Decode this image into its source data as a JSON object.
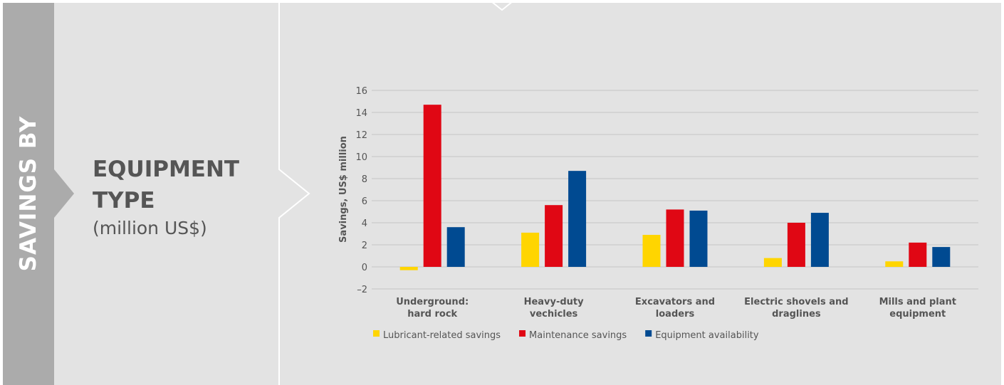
{
  "sidebar": {
    "title": "SAVINGS BY"
  },
  "heading": {
    "line1": "EQUIPMENT",
    "line2": "TYPE",
    "unit": "(million US$)"
  },
  "colors": {
    "panel_bg": "#e3e3e3",
    "side_strip": "#ababab",
    "text": "#555555",
    "grid": "#c4c4c4"
  },
  "chart_data": {
    "type": "bar",
    "categories": [
      [
        "Underground:",
        "hard rock"
      ],
      [
        "Heavy-duty",
        "vechicles"
      ],
      [
        "Excavators and",
        "loaders"
      ],
      [
        "Electric shovels and",
        "draglines"
      ],
      [
        "Mills and plant",
        "equipment"
      ]
    ],
    "series": [
      {
        "name": "Lubricant-related savings",
        "color": "#ffd500",
        "values": [
          -0.3,
          3.1,
          2.9,
          0.8,
          0.5
        ]
      },
      {
        "name": "Maintenance savings",
        "color": "#e00714",
        "values": [
          14.7,
          5.6,
          5.2,
          4.0,
          2.2
        ]
      },
      {
        "name": "Equipment availability",
        "color": "#004a91",
        "values": [
          3.6,
          8.7,
          5.1,
          4.9,
          1.8
        ]
      }
    ],
    "ylabel": "Savings, US$ million",
    "xlabel": "",
    "ylim": [
      -2,
      16
    ],
    "yticks": [
      -2,
      0,
      2,
      4,
      6,
      8,
      10,
      12,
      14,
      16
    ],
    "ytick_labels": [
      "–2",
      "0",
      "2",
      "4",
      "6",
      "8",
      "10",
      "12",
      "14",
      "16"
    ],
    "grid": true,
    "legend": "bottom-left"
  }
}
